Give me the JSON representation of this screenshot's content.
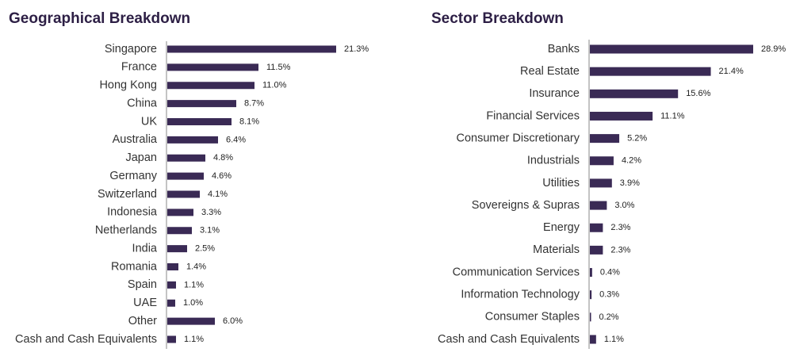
{
  "colors": {
    "bar": "#3a2a55",
    "title": "#2d1f45",
    "axis": "#888888",
    "text": "#333333"
  },
  "chart_data": [
    {
      "type": "bar",
      "orientation": "horizontal",
      "title": "Geographical Breakdown",
      "categories": [
        "Singapore",
        "France",
        "Hong Kong",
        "China",
        "UK",
        "Australia",
        "Japan",
        "Germany",
        "Switzerland",
        "Indonesia",
        "Netherlands",
        "India",
        "Romania",
        "Spain",
        "UAE",
        "Other",
        "Cash and Cash Equivalents"
      ],
      "values": [
        21.3,
        11.5,
        11.0,
        8.7,
        8.1,
        6.4,
        4.8,
        4.6,
        4.1,
        3.3,
        3.1,
        2.5,
        1.4,
        1.1,
        1.0,
        6.0,
        1.1
      ],
      "value_labels": [
        "21.3%",
        "11.5%",
        "11.0%",
        "8.7%",
        "8.1%",
        "6.4%",
        "4.8%",
        "4.6%",
        "4.1%",
        "3.3%",
        "3.1%",
        "2.5%",
        "1.4%",
        "1.1%",
        "1.0%",
        "6.0%",
        "1.1%"
      ],
      "xlim": [
        0,
        21.3
      ],
      "grid": false,
      "legend": false
    },
    {
      "type": "bar",
      "orientation": "horizontal",
      "title": "Sector Breakdown",
      "categories": [
        "Banks",
        "Real Estate",
        "Insurance",
        "Financial Services",
        "Consumer Discretionary",
        "Industrials",
        "Utilities",
        "Sovereigns & Supras",
        "Energy",
        "Materials",
        "Communication Services",
        "Information Technology",
        "Consumer Staples",
        "Cash and Cash Equivalents"
      ],
      "values": [
        28.9,
        21.4,
        15.6,
        11.1,
        5.2,
        4.2,
        3.9,
        3.0,
        2.3,
        2.3,
        0.4,
        0.3,
        0.2,
        1.1
      ],
      "value_labels": [
        "28.9%",
        "21.4%",
        "15.6%",
        "11.1%",
        "5.2%",
        "4.2%",
        "3.9%",
        "3.0%",
        "2.3%",
        "2.3%",
        "0.4%",
        "0.3%",
        "0.2%",
        "1.1%"
      ],
      "xlim": [
        0,
        28.9
      ],
      "grid": false,
      "legend": false
    }
  ]
}
